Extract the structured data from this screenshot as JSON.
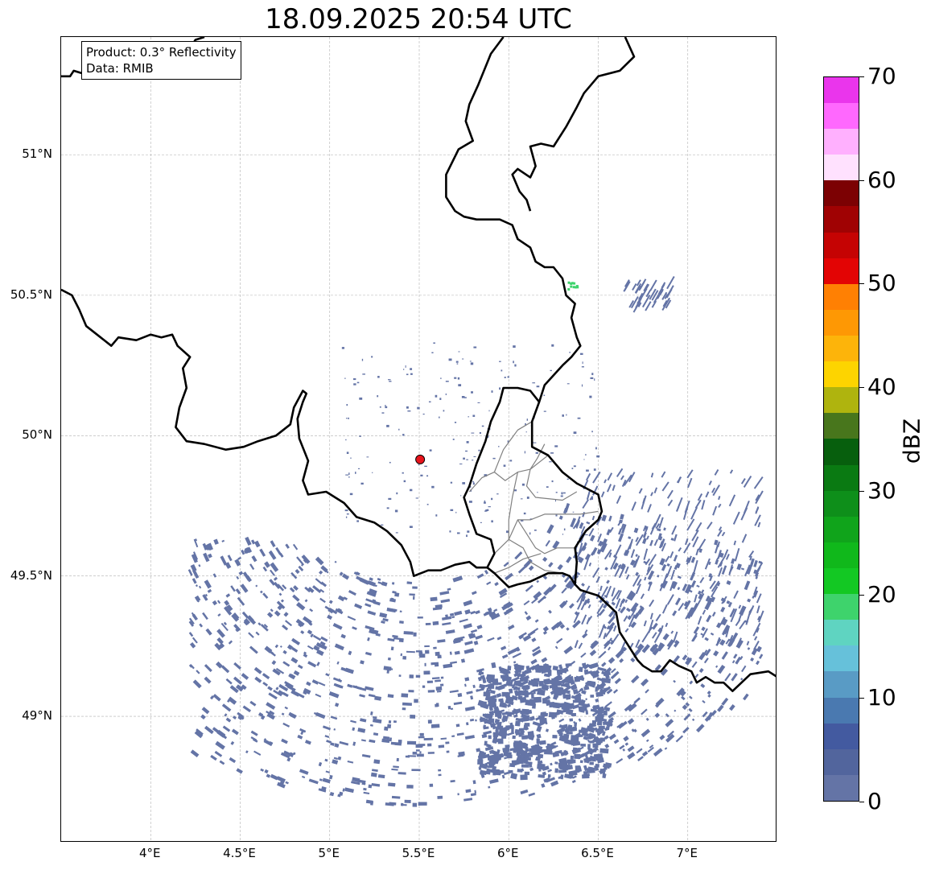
{
  "title": "18.09.2025 20:54 UTC",
  "info": {
    "product": "Product: 0.3° Reflectivity",
    "data": "Data: RMIB"
  },
  "map": {
    "lon_range": [
      3.5,
      7.5
    ],
    "lat_range": [
      48.55,
      51.42
    ],
    "lat_ticks": [
      {
        "value": 49.0,
        "label": "49°N"
      },
      {
        "value": 49.5,
        "label": "49.5°N"
      },
      {
        "value": 50.0,
        "label": "50°N"
      },
      {
        "value": 50.5,
        "label": "50.5°N"
      },
      {
        "value": 51.0,
        "label": "51°N"
      }
    ],
    "lon_ticks": [
      {
        "value": 4.0,
        "label": "4°E"
      },
      {
        "value": 4.5,
        "label": "4.5°E"
      },
      {
        "value": 5.0,
        "label": "5°E"
      },
      {
        "value": 5.5,
        "label": "5.5°E"
      },
      {
        "value": 6.0,
        "label": "6°E"
      },
      {
        "value": 6.5,
        "label": "6.5°E"
      },
      {
        "value": 7.0,
        "label": "7°E"
      }
    ],
    "grid": true,
    "radar_site": {
      "lon": 5.505,
      "lat": 49.915,
      "color": "#e8141c"
    },
    "border_color": "#000000",
    "admin_border_color": "#808080",
    "echo_color_low": "#6474a6",
    "echo_color_mid": "#3ed36c",
    "borders": {
      "north": [
        [
          3.5,
          51.28
        ],
        [
          3.55,
          51.28
        ],
        [
          3.57,
          51.3
        ],
        [
          3.62,
          51.29
        ],
        [
          3.7,
          51.33
        ],
        [
          3.8,
          51.29
        ],
        [
          3.92,
          51.31
        ],
        [
          4.05,
          51.33
        ],
        [
          4.12,
          51.36
        ],
        [
          4.22,
          51.38
        ],
        [
          4.25,
          51.41
        ],
        [
          4.3,
          51.42
        ]
      ],
      "south": [
        [
          3.5,
          50.52
        ],
        [
          3.56,
          50.5
        ],
        [
          3.6,
          50.45
        ],
        [
          3.64,
          50.39
        ],
        [
          3.72,
          50.35
        ],
        [
          3.78,
          50.32
        ],
        [
          3.82,
          50.35
        ],
        [
          3.92,
          50.34
        ],
        [
          4.0,
          50.36
        ],
        [
          4.06,
          50.35
        ],
        [
          4.12,
          50.36
        ],
        [
          4.15,
          50.32
        ],
        [
          4.22,
          50.28
        ],
        [
          4.18,
          50.24
        ],
        [
          4.2,
          50.17
        ],
        [
          4.16,
          50.1
        ],
        [
          4.14,
          50.03
        ],
        [
          4.2,
          49.98
        ],
        [
          4.3,
          49.97
        ],
        [
          4.42,
          49.95
        ],
        [
          4.52,
          49.96
        ],
        [
          4.6,
          49.98
        ],
        [
          4.7,
          50.0
        ],
        [
          4.78,
          50.04
        ],
        [
          4.8,
          50.1
        ],
        [
          4.85,
          50.16
        ],
        [
          4.87,
          50.15
        ],
        [
          4.85,
          50.12
        ],
        [
          4.82,
          50.06
        ],
        [
          4.83,
          49.99
        ],
        [
          4.88,
          49.91
        ],
        [
          4.85,
          49.84
        ],
        [
          4.88,
          49.79
        ],
        [
          4.98,
          49.8
        ],
        [
          5.08,
          49.76
        ],
        [
          5.15,
          49.71
        ],
        [
          5.25,
          49.69
        ],
        [
          5.32,
          49.66
        ],
        [
          5.4,
          49.61
        ],
        [
          5.45,
          49.55
        ],
        [
          5.47,
          49.5
        ],
        [
          5.55,
          49.52
        ],
        [
          5.62,
          49.52
        ],
        [
          5.7,
          49.54
        ],
        [
          5.78,
          49.55
        ],
        [
          5.82,
          49.53
        ],
        [
          5.88,
          49.53
        ],
        [
          5.92,
          49.51
        ],
        [
          6.0,
          49.46
        ],
        [
          6.05,
          49.47
        ],
        [
          6.12,
          49.48
        ],
        [
          6.22,
          49.51
        ],
        [
          6.3,
          49.51
        ],
        [
          6.34,
          49.5
        ],
        [
          6.37,
          49.47
        ],
        [
          6.4,
          49.45
        ],
        [
          6.45,
          49.44
        ],
        [
          6.5,
          49.43
        ],
        [
          6.55,
          49.4
        ],
        [
          6.6,
          49.37
        ],
        [
          6.62,
          49.3
        ],
        [
          6.65,
          49.27
        ],
        [
          6.72,
          49.2
        ],
        [
          6.75,
          49.18
        ],
        [
          6.8,
          49.16
        ],
        [
          6.85,
          49.16
        ],
        [
          6.9,
          49.2
        ],
        [
          6.95,
          49.18
        ],
        [
          7.02,
          49.16
        ],
        [
          7.05,
          49.12
        ],
        [
          7.1,
          49.14
        ],
        [
          7.15,
          49.12
        ],
        [
          7.2,
          49.12
        ],
        [
          7.25,
          49.09
        ],
        [
          7.3,
          49.12
        ],
        [
          7.35,
          49.15
        ],
        [
          7.45,
          49.16
        ],
        [
          7.5,
          49.14
        ]
      ],
      "east": [
        [
          5.97,
          51.42
        ],
        [
          5.9,
          51.36
        ],
        [
          5.83,
          51.25
        ],
        [
          5.78,
          51.18
        ],
        [
          5.76,
          51.12
        ],
        [
          5.8,
          51.05
        ],
        [
          5.72,
          51.02
        ],
        [
          5.65,
          50.93
        ],
        [
          5.65,
          50.85
        ],
        [
          5.7,
          50.8
        ],
        [
          5.75,
          50.78
        ],
        [
          5.82,
          50.77
        ],
        [
          5.95,
          50.77
        ],
        [
          6.02,
          50.75
        ],
        [
          6.05,
          50.7
        ],
        [
          6.12,
          50.67
        ],
        [
          6.15,
          50.62
        ],
        [
          6.2,
          50.6
        ],
        [
          6.25,
          50.6
        ],
        [
          6.3,
          50.56
        ],
        [
          6.32,
          50.5
        ],
        [
          6.37,
          50.47
        ],
        [
          6.35,
          50.42
        ],
        [
          6.38,
          50.35
        ],
        [
          6.4,
          50.32
        ],
        [
          6.35,
          50.28
        ],
        [
          6.3,
          50.25
        ],
        [
          6.2,
          50.18
        ],
        [
          6.17,
          50.12
        ],
        [
          6.12,
          50.16
        ],
        [
          6.05,
          50.17
        ],
        [
          5.97,
          50.17
        ],
        [
          5.95,
          50.12
        ],
        [
          5.9,
          50.05
        ],
        [
          5.87,
          49.98
        ],
        [
          5.82,
          49.9
        ],
        [
          5.78,
          49.82
        ],
        [
          5.75,
          49.78
        ],
        [
          5.78,
          49.72
        ],
        [
          5.82,
          49.65
        ],
        [
          5.9,
          49.63
        ],
        [
          5.92,
          49.58
        ],
        [
          5.88,
          49.53
        ]
      ],
      "east_lu": [
        [
          6.17,
          50.12
        ],
        [
          6.13,
          50.05
        ],
        [
          6.13,
          49.96
        ],
        [
          6.22,
          49.93
        ],
        [
          6.3,
          49.87
        ],
        [
          6.38,
          49.83
        ],
        [
          6.5,
          49.79
        ],
        [
          6.52,
          49.73
        ],
        [
          6.5,
          49.7
        ],
        [
          6.43,
          49.66
        ],
        [
          6.37,
          49.6
        ],
        [
          6.38,
          49.55
        ],
        [
          6.37,
          49.47
        ]
      ],
      "east_de_top": [
        [
          6.65,
          51.42
        ],
        [
          6.7,
          51.35
        ],
        [
          6.62,
          51.3
        ],
        [
          6.5,
          51.28
        ],
        [
          6.42,
          51.22
        ],
        [
          6.38,
          51.17
        ],
        [
          6.32,
          51.1
        ],
        [
          6.25,
          51.03
        ],
        [
          6.18,
          51.04
        ],
        [
          6.12,
          51.03
        ],
        [
          6.15,
          50.96
        ],
        [
          6.12,
          50.92
        ],
        [
          6.05,
          50.95
        ],
        [
          6.02,
          50.93
        ],
        [
          6.06,
          50.87
        ],
        [
          6.1,
          50.84
        ],
        [
          6.12,
          50.8
        ]
      ],
      "admin": [
        [
          [
            5.78,
            49.8
          ],
          [
            5.85,
            49.85
          ],
          [
            5.92,
            49.87
          ],
          [
            5.98,
            49.84
          ],
          [
            6.05,
            49.87
          ],
          [
            6.12,
            49.88
          ],
          [
            6.22,
            49.93
          ]
        ],
        [
          [
            5.92,
            49.58
          ],
          [
            6.0,
            49.63
          ],
          [
            6.05,
            49.7
          ],
          [
            6.12,
            49.7
          ],
          [
            6.2,
            49.72
          ],
          [
            6.3,
            49.72
          ],
          [
            6.4,
            49.72
          ],
          [
            6.5,
            49.73
          ]
        ],
        [
          [
            6.0,
            49.63
          ],
          [
            6.08,
            49.6
          ],
          [
            6.12,
            49.55
          ],
          [
            6.2,
            49.52
          ],
          [
            6.3,
            49.51
          ]
        ],
        [
          [
            5.92,
            49.51
          ],
          [
            6.0,
            49.53
          ],
          [
            6.08,
            49.56
          ],
          [
            6.18,
            49.58
          ]
        ],
        [
          [
            6.05,
            49.87
          ],
          [
            6.02,
            49.78
          ],
          [
            6.0,
            49.7
          ],
          [
            6.0,
            49.63
          ]
        ],
        [
          [
            6.12,
            49.88
          ],
          [
            6.1,
            49.82
          ],
          [
            6.15,
            49.78
          ],
          [
            6.3,
            49.77
          ],
          [
            6.38,
            49.8
          ]
        ],
        [
          [
            5.92,
            49.87
          ],
          [
            5.97,
            49.95
          ],
          [
            6.05,
            50.02
          ],
          [
            6.13,
            50.05
          ]
        ],
        [
          [
            6.12,
            49.88
          ],
          [
            6.16,
            49.92
          ],
          [
            6.2,
            49.97
          ]
        ],
        [
          [
            6.05,
            49.7
          ],
          [
            6.1,
            49.65
          ],
          [
            6.15,
            49.6
          ],
          [
            6.2,
            49.58
          ],
          [
            6.27,
            49.6
          ],
          [
            6.37,
            49.6
          ]
        ]
      ]
    }
  },
  "colorbar": {
    "label": "dBZ",
    "min": 0,
    "max": 70,
    "ticks": [
      0,
      10,
      20,
      30,
      40,
      50,
      60,
      70
    ],
    "colors": [
      "#6474a6",
      "#52659d",
      "#435aa0",
      "#4a79b0",
      "#599bc5",
      "#66c1da",
      "#5fd4c1",
      "#3ed36c",
      "#13c823",
      "#10b81b",
      "#10a41b",
      "#0e8f1a",
      "#0a7a12",
      "#075f0d",
      "#48761c",
      "#afb40e",
      "#fdd400",
      "#fdb40a",
      "#fe9804",
      "#ff8003",
      "#e30404",
      "#c50303",
      "#a00203",
      "#7c0103",
      "#ffe1fe",
      "#ffb0fe",
      "#ff68fe",
      "#ea35ec"
    ]
  }
}
